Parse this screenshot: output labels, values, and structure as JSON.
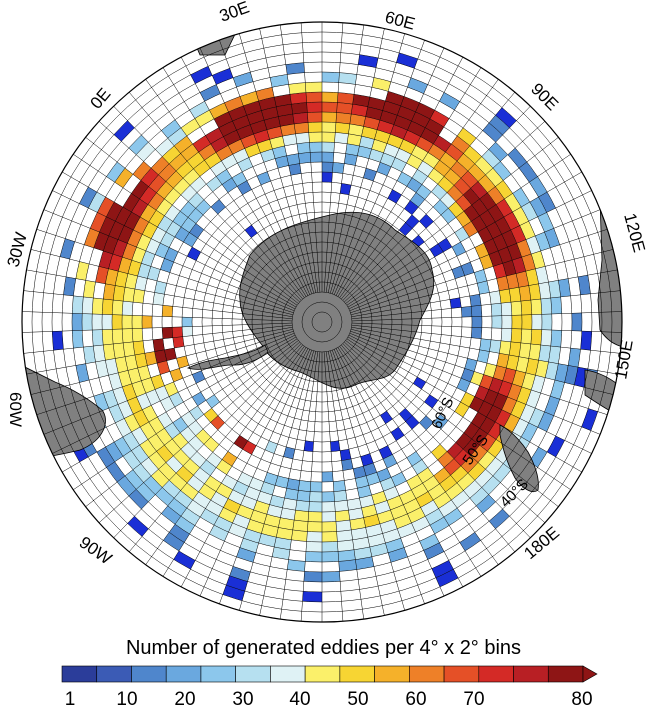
{
  "map": {
    "projection": "south-polar-stereographic",
    "longitude_labels": [
      "0E",
      "30E",
      "60E",
      "90E",
      "120E",
      "150E",
      "180E",
      "90W",
      "60W",
      "30W"
    ],
    "latitude_labels": [
      "60°S",
      "50°S",
      "40°S"
    ]
  },
  "colorbar": {
    "title": "Number of generated eddies per 4° x 2° bins",
    "tick_labels": [
      "1",
      "10",
      "20",
      "30",
      "40",
      "50",
      "60",
      "70",
      "80"
    ],
    "colors": [
      "#2b3d9a",
      "#3b5bb5",
      "#4f86cc",
      "#6aa8df",
      "#8cc7ec",
      "#b6e0f0",
      "#dff2f5",
      "#fbf06a",
      "#f7d533",
      "#f5b12a",
      "#ee8028",
      "#e55027",
      "#d42a26",
      "#b81f24",
      "#8e1515"
    ],
    "extend": "max"
  },
  "colors": {
    "land": "#808080",
    "grid": "#000000",
    "ocean": "#ffffff",
    "dark_blue": "#1a2fd6"
  }
}
